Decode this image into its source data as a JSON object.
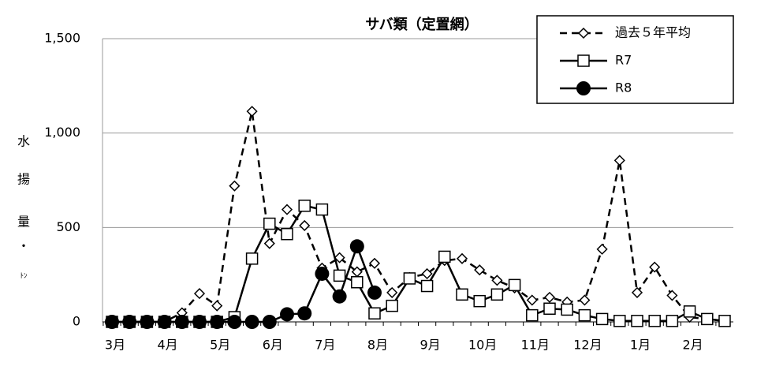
{
  "chart_data": {
    "type": "line",
    "title": "サバ類（定置網）",
    "y_label": [
      "水",
      "揚",
      "量",
      "・",
      "ﾄﾝ"
    ],
    "categories": [
      "3月",
      null,
      null,
      "4月",
      null,
      null,
      "5月",
      null,
      null,
      "6月",
      null,
      null,
      "7月",
      null,
      null,
      "8月",
      null,
      null,
      "9月",
      null,
      null,
      "10月",
      null,
      null,
      "11月",
      null,
      null,
      "12月",
      null,
      null,
      "1月",
      null,
      null,
      "2月",
      null,
      null
    ],
    "series": [
      {
        "name": "過去５年平均",
        "color": "#000000",
        "marker": "diamond",
        "dashed": true,
        "values": [
          0,
          0,
          0,
          0,
          48,
          150,
          85,
          720,
          1115,
          415,
          595,
          510,
          285,
          340,
          265,
          310,
          155,
          235,
          255,
          325,
          335,
          275,
          220,
          180,
          115,
          130,
          105,
          115,
          385,
          855,
          155,
          290,
          140,
          25,
          15,
          5
        ]
      },
      {
        "name": "R7",
        "color": "#000000",
        "marker": "square",
        "dashed": false,
        "values": [
          0,
          0,
          0,
          0,
          0,
          0,
          0,
          25,
          335,
          520,
          465,
          615,
          595,
          245,
          210,
          45,
          85,
          230,
          190,
          345,
          145,
          110,
          145,
          195,
          35,
          70,
          65,
          35,
          15,
          5,
          5,
          5,
          5,
          55,
          15,
          5
        ]
      },
      {
        "name": "R8",
        "color": "#000000",
        "marker": "circle",
        "dashed": false,
        "values": [
          0,
          0,
          0,
          0,
          0,
          0,
          0,
          0,
          0,
          0,
          40,
          45,
          255,
          135,
          400,
          155,
          null,
          null,
          null,
          null,
          null,
          null,
          null,
          null,
          null,
          null,
          null,
          null,
          null,
          null,
          null,
          null,
          null,
          null,
          null,
          null
        ]
      }
    ],
    "ylim": [
      0,
      1500
    ],
    "yticks": [
      0,
      500,
      {
        "value": 1000,
        "label": "1,000"
      },
      {
        "value": 1500,
        "label": "1,500"
      }
    ],
    "grid": true,
    "legend": "top-right"
  }
}
